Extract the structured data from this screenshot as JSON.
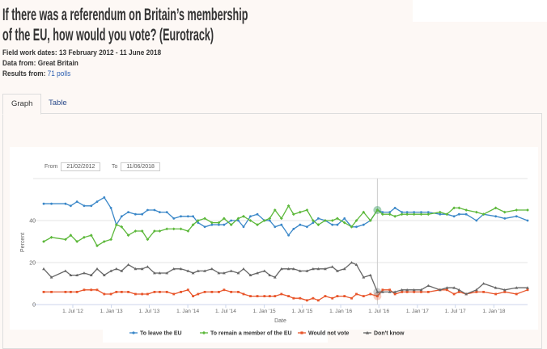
{
  "header": {
    "title_line1": "If there was a referendum on Britain’s membership",
    "title_line2": "of the EU, how would you vote? (Eurotrack)",
    "fieldwork_label": "Field work dates: ",
    "fieldwork_value": "13 February 2012 - 11 June 2018",
    "data_from_label": "Data from: ",
    "data_from_value": "Great Britain",
    "results_label": "Results from: ",
    "results_link": "71 polls"
  },
  "tabs": [
    {
      "label": "Graph",
      "active": true
    },
    {
      "label": "Table",
      "active": false
    }
  ],
  "range": {
    "from_label": "From",
    "from_value": "21/02/2012",
    "to_label": "To",
    "to_value": "11/06/2018"
  },
  "chart_data": {
    "type": "line",
    "xlabel": "Date",
    "ylabel": "Percent",
    "ylim": [
      0,
      60
    ],
    "yticks": [
      0,
      20,
      40
    ],
    "xticks": [
      {
        "date": "2012-07-01",
        "label": "1. Jul '12"
      },
      {
        "date": "2013-01-01",
        "label": "1. Jan '13"
      },
      {
        "date": "2013-07-01",
        "label": "1. Jul '13"
      },
      {
        "date": "2014-01-01",
        "label": "1. Jan '14"
      },
      {
        "date": "2014-07-01",
        "label": "1. Jul '14"
      },
      {
        "date": "2015-01-01",
        "label": "1. Jan '15"
      },
      {
        "date": "2015-07-01",
        "label": "1. Jul '15"
      },
      {
        "date": "2016-01-01",
        "label": "1. Jan '16"
      },
      {
        "date": "2016-07-01",
        "label": "1. Jul '16"
      },
      {
        "date": "2017-01-01",
        "label": "1. Jan '17"
      },
      {
        "date": "2017-07-01",
        "label": "1. Jul '17"
      },
      {
        "date": "2018-01-01",
        "label": "1. Jan '18"
      }
    ],
    "grid": true,
    "legend": "bottom",
    "highlight_date": "2016-06-24",
    "x": [
      "2012-02-13",
      "2012-03-21",
      "2012-05-27",
      "2012-06-21",
      "2012-07-21",
      "2012-08-24",
      "2012-09-27",
      "2012-10-25",
      "2012-11-28",
      "2012-12-30",
      "2013-01-25",
      "2013-02-19",
      "2013-03-23",
      "2013-04-26",
      "2013-05-28",
      "2013-06-23",
      "2013-07-26",
      "2013-08-20",
      "2013-09-23",
      "2013-10-26",
      "2013-11-29",
      "2014-01-02",
      "2014-01-26",
      "2014-02-19",
      "2014-03-23",
      "2014-04-26",
      "2014-05-29",
      "2014-06-23",
      "2014-07-27",
      "2014-08-30",
      "2014-09-24",
      "2014-10-27",
      "2014-11-29",
      "2015-01-02",
      "2015-01-27",
      "2015-02-21",
      "2015-03-24",
      "2015-04-27",
      "2015-05-21",
      "2015-06-21",
      "2015-07-24",
      "2015-08-22",
      "2015-09-16",
      "2015-10-19",
      "2015-11-22",
      "2015-12-16",
      "2016-01-19",
      "2016-02-22",
      "2016-03-16",
      "2016-04-19",
      "2016-05-22",
      "2016-06-24",
      "2016-07-19",
      "2016-08-22",
      "2016-09-16",
      "2016-10-19",
      "2016-11-13",
      "2016-12-16",
      "2017-01-19",
      "2017-02-22",
      "2017-04-19",
      "2017-05-22",
      "2017-06-25",
      "2017-07-19",
      "2017-08-22",
      "2017-10-10",
      "2017-11-13",
      "2018-01-10",
      "2018-02-22",
      "2018-04-19",
      "2018-06-11"
    ],
    "series": [
      {
        "name": "To leave the EU",
        "color": "#3a87c8",
        "marker": "circle",
        "values": [
          48,
          48,
          48,
          47,
          49,
          47,
          47,
          49,
          51,
          46,
          38,
          42,
          44,
          43,
          43,
          45,
          45,
          44,
          44,
          41,
          42,
          42,
          42,
          39,
          37,
          38,
          38,
          38,
          40,
          40,
          37,
          42,
          43,
          40,
          40,
          37,
          38,
          33,
          36,
          38,
          37,
          39,
          41,
          40,
          38,
          38,
          41,
          37,
          37,
          38,
          40,
          45,
          44,
          44,
          46,
          44,
          44,
          44,
          44,
          44,
          43,
          43,
          42,
          43,
          43,
          40,
          43,
          42,
          41,
          42,
          40
        ]
      },
      {
        "name": "To remain a member of the EU",
        "color": "#5cb83a",
        "marker": "diamond",
        "values": [
          30,
          32,
          31,
          33,
          30,
          32,
          33,
          28,
          30,
          31,
          38,
          37,
          33,
          35,
          35,
          31,
          35,
          35,
          36,
          36,
          36,
          35,
          38,
          40,
          41,
          39,
          39,
          41,
          38,
          41,
          42,
          40,
          38,
          40,
          41,
          45,
          41,
          47,
          43,
          44,
          45,
          40,
          38,
          40,
          40,
          41,
          39,
          37,
          40,
          44,
          40,
          45,
          43,
          43,
          42,
          43,
          43,
          43,
          43,
          43,
          44,
          43,
          46,
          46,
          45,
          44,
          43,
          46,
          44,
          45,
          45
        ]
      },
      {
        "name": "Would not vote",
        "color": "#e8552a",
        "marker": "square",
        "values": [
          6,
          6,
          6,
          6,
          6,
          7,
          7,
          7,
          5,
          5,
          6,
          6,
          6,
          5,
          5,
          5,
          6,
          6,
          6,
          5,
          6,
          7,
          4,
          5,
          6,
          6,
          6,
          7,
          6,
          6,
          5,
          4,
          4,
          4,
          4,
          4,
          5,
          4,
          3,
          3,
          2,
          3,
          2,
          4,
          3,
          4,
          4,
          3,
          5,
          4,
          5,
          4,
          7,
          7,
          5,
          6,
          6,
          6,
          6,
          6,
          7,
          7,
          5,
          6,
          5,
          6,
          6,
          5,
          6,
          5,
          7
        ]
      },
      {
        "name": "Don't know",
        "color": "#666666",
        "marker": "triangle",
        "values": [
          17,
          13,
          16,
          14,
          14,
          15,
          14,
          17,
          14,
          16,
          17,
          16,
          19,
          17,
          17,
          18,
          15,
          15,
          15,
          17,
          17,
          16,
          15,
          16,
          16,
          17,
          15,
          15,
          16,
          15,
          17,
          14,
          15,
          16,
          14,
          13,
          17,
          17,
          17,
          16,
          16,
          17,
          17,
          17,
          18,
          16,
          17,
          20,
          19,
          13,
          14,
          6,
          6,
          6,
          6,
          7,
          7,
          7,
          7,
          9,
          7,
          8,
          8,
          7,
          5,
          7,
          10,
          8,
          7,
          8,
          8
        ]
      }
    ]
  }
}
